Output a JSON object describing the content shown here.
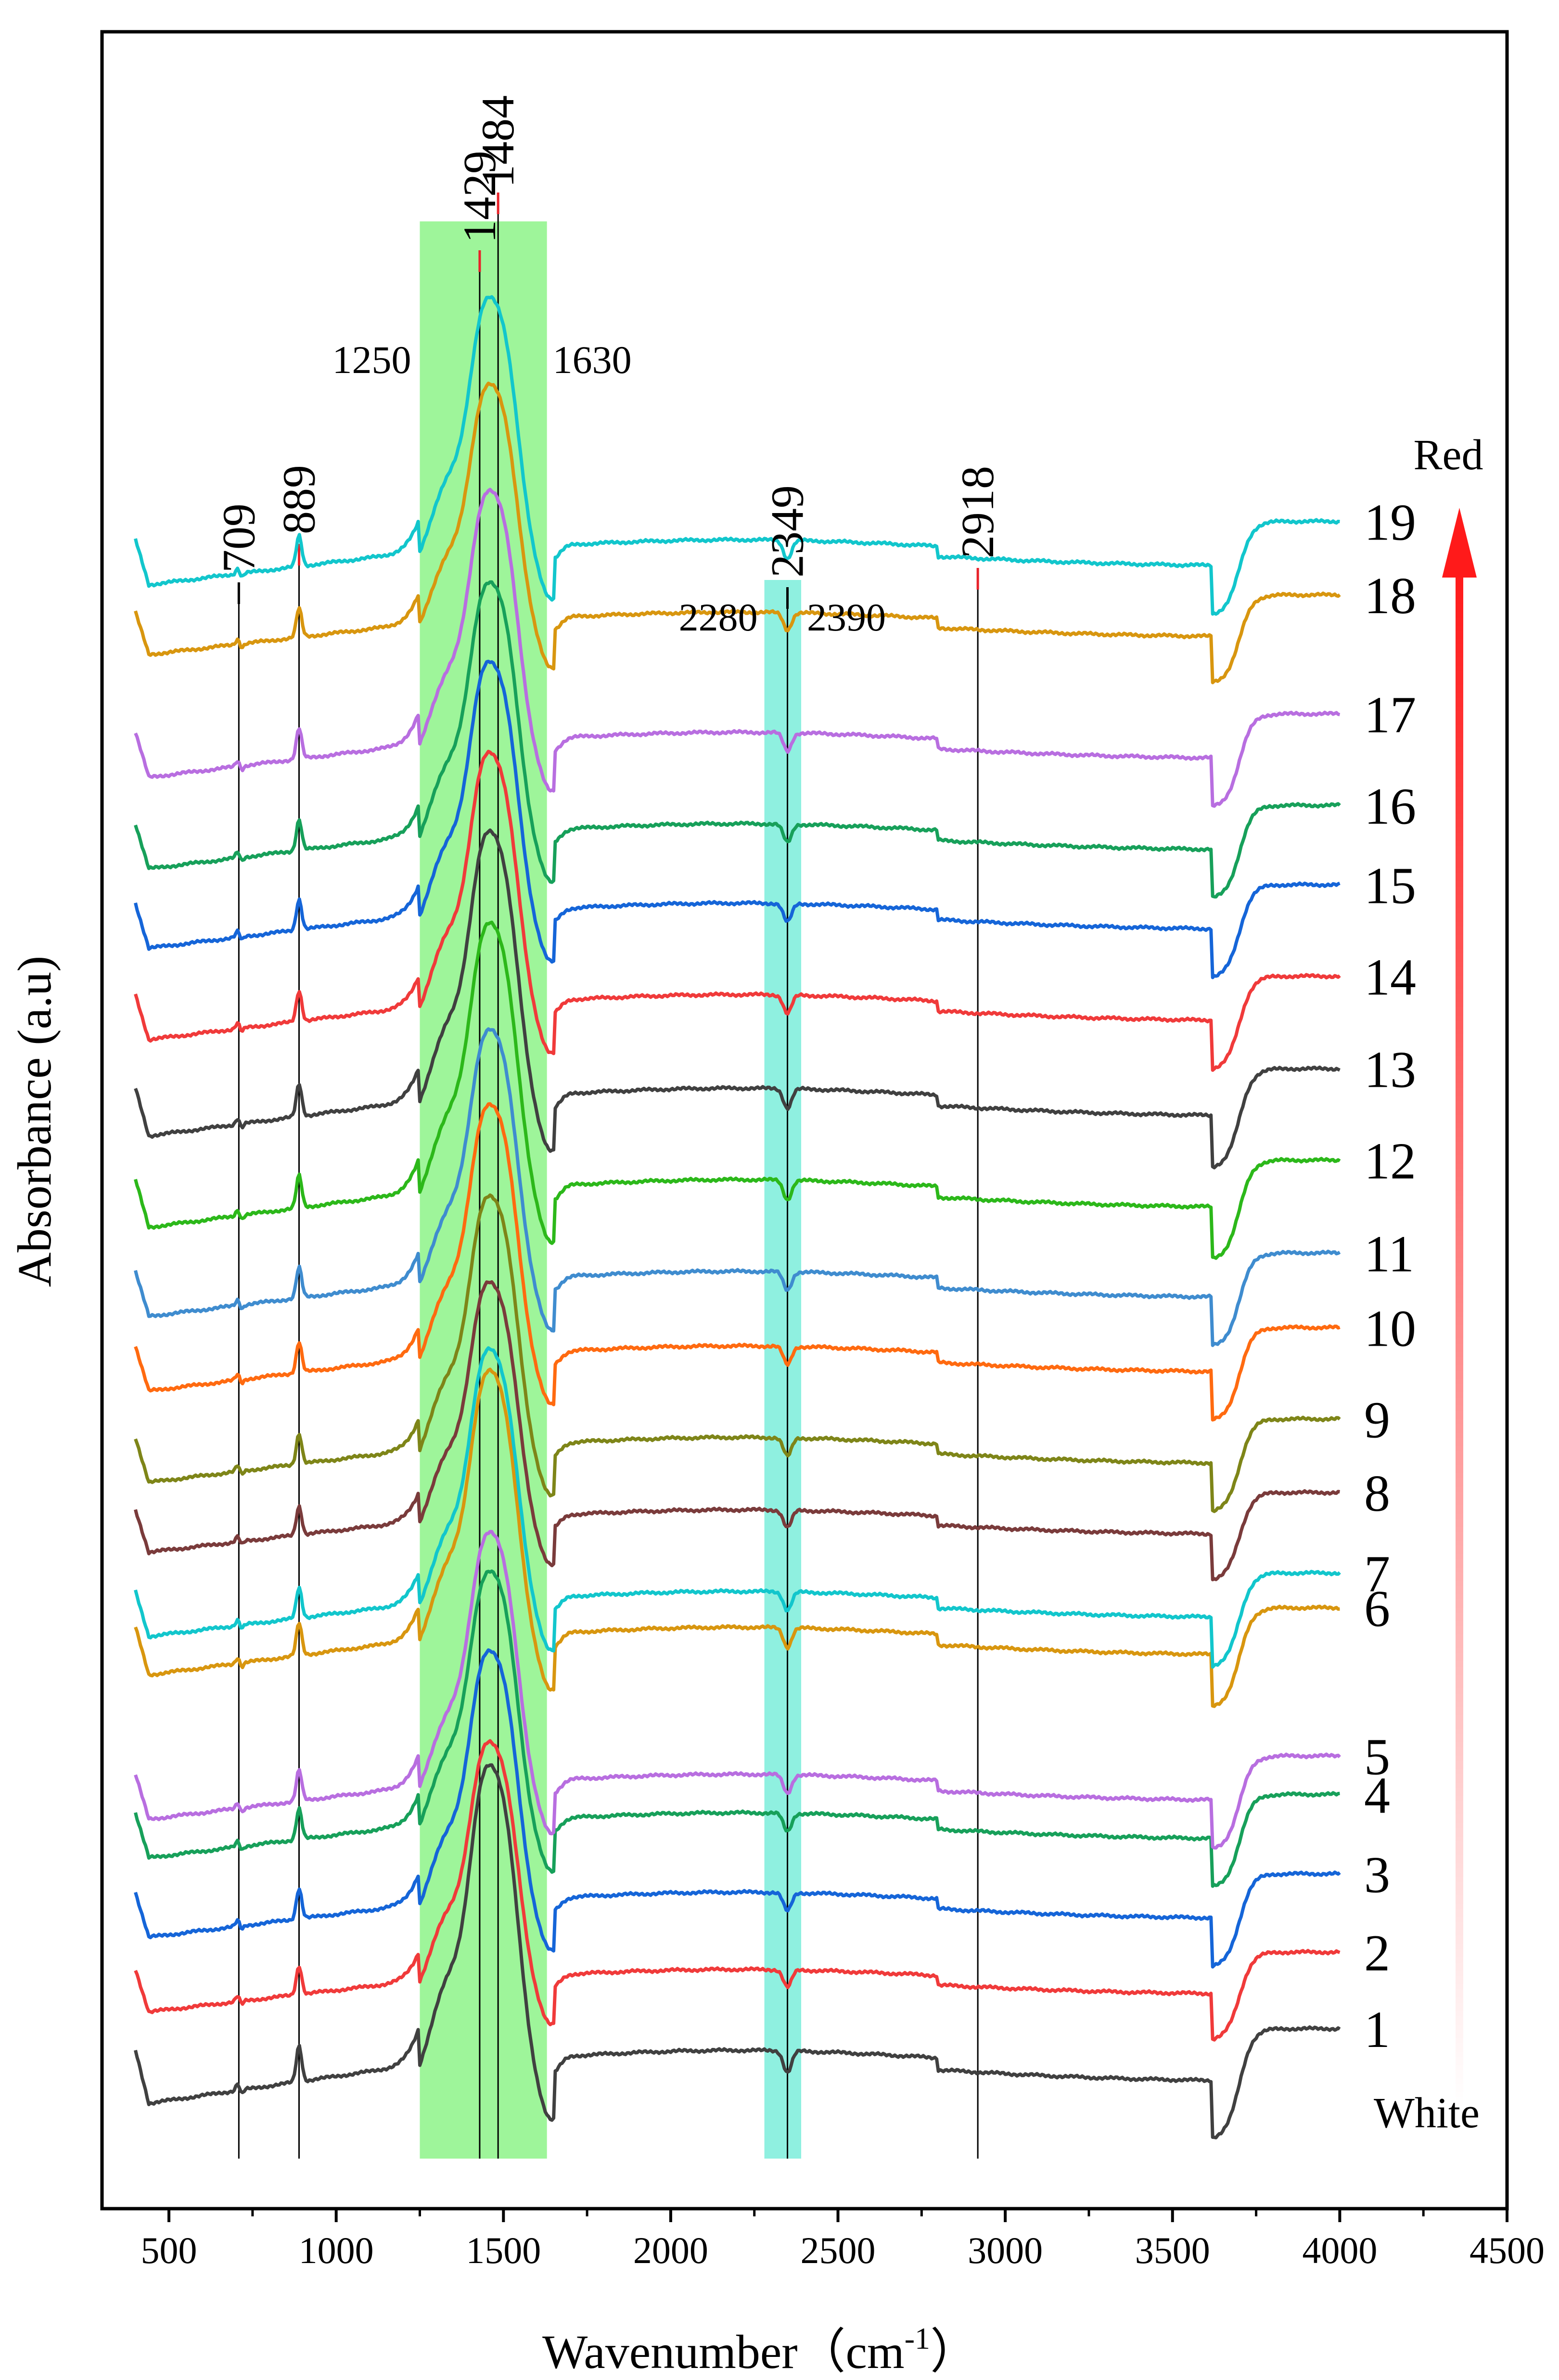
{
  "chart_data": {
    "type": "line",
    "xlabel": "Wavenumber（cm",
    "xlabel_sup": "-1",
    "xlabel_close": "）",
    "ylabel": "Absorbance (a.u)",
    "xlim": [
      300,
      4500
    ],
    "xticks": [
      "500",
      "1000",
      "1500",
      "2000",
      "2500",
      "3000",
      "3500",
      "4000",
      "4500"
    ],
    "xtick_values": [
      500,
      1000,
      1500,
      2000,
      2500,
      3000,
      3500,
      4000,
      4500
    ],
    "y_ticks_shown": false,
    "peaks": [
      {
        "label": "709",
        "x": 709,
        "color": "#000000"
      },
      {
        "label": "889",
        "x": 889,
        "color": "#e8222a"
      },
      {
        "label": "1429",
        "x": 1429,
        "color": "#e8222a"
      },
      {
        "label": "1484",
        "x": 1484,
        "color": "#e8222a"
      },
      {
        "label": "2349",
        "x": 2349,
        "color": "#000000"
      },
      {
        "label": "2918",
        "x": 2918,
        "color": "#e8222a"
      }
    ],
    "shaded_regions": [
      {
        "from": 1250,
        "to": 1630,
        "color": "#9ef59a",
        "label_from": "1250",
        "label_to": "1630"
      },
      {
        "from": 2280,
        "to": 2390,
        "color": "#8ff0e0",
        "label_from": "2280",
        "label_to": "2390"
      }
    ],
    "arrow": {
      "top_label": "Red",
      "bottom_label": "White",
      "color": "#ff1a1a"
    },
    "series": [
      {
        "name": "1",
        "color": "#404040",
        "offset": 0,
        "scale": 1.0
      },
      {
        "name": "2",
        "color": "#f03a3a",
        "offset": 190,
        "scale": 0.8
      },
      {
        "name": "3",
        "color": "#1565d8",
        "offset": 345,
        "scale": 0.85
      },
      {
        "name": "4",
        "color": "#17a05a",
        "offset": 510,
        "scale": 0.85
      },
      {
        "name": "5",
        "color": "#b86ee0",
        "offset": 590,
        "scale": 0.85
      },
      {
        "name": "6",
        "color": "#d8960f",
        "offset": 890,
        "scale": 0.9
      },
      {
        "name": "7",
        "color": "#12c6cc",
        "offset": 970,
        "scale": 0.85
      },
      {
        "name": "8",
        "color": "#7a3b3b",
        "offset": 1145,
        "scale": 0.8
      },
      {
        "name": "9",
        "color": "#7e8518",
        "offset": 1290,
        "scale": 0.85
      },
      {
        "name": "10",
        "color": "#ff6a10",
        "offset": 1480,
        "scale": 0.85
      },
      {
        "name": "11",
        "color": "#3f8ccf",
        "offset": 1635,
        "scale": 0.85
      },
      {
        "name": "12",
        "color": "#2cb81a",
        "offset": 1820,
        "scale": 0.9
      },
      {
        "name": "13",
        "color": "#404040",
        "offset": 2010,
        "scale": 0.9
      },
      {
        "name": "14",
        "color": "#f03a3a",
        "offset": 2210,
        "scale": 0.85
      },
      {
        "name": "15",
        "color": "#1565d8",
        "offset": 2400,
        "scale": 0.85
      },
      {
        "name": "16",
        "color": "#17a05a",
        "offset": 2565,
        "scale": 0.85
      },
      {
        "name": "17",
        "color": "#b86ee0",
        "offset": 2755,
        "scale": 0.85
      },
      {
        "name": "18",
        "color": "#d8960f",
        "offset": 3010,
        "scale": 0.8
      },
      {
        "name": "19",
        "color": "#12c6cc",
        "offset": 3155,
        "scale": 0.85
      }
    ]
  }
}
